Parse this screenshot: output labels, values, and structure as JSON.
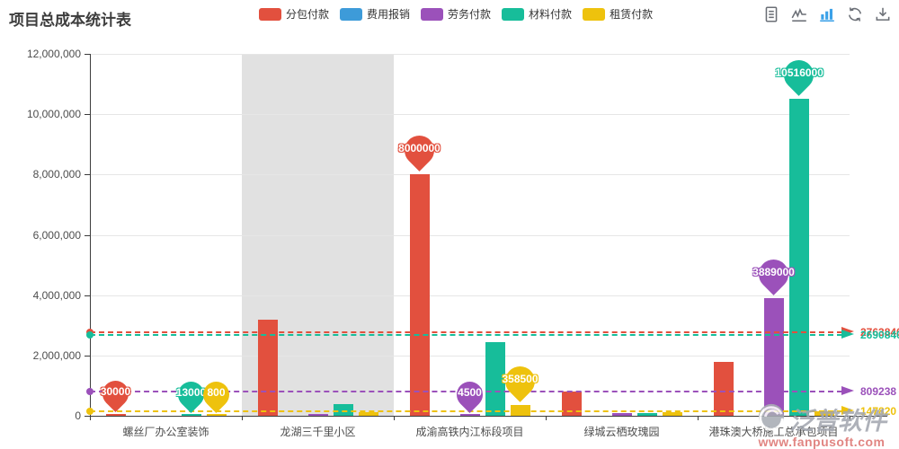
{
  "header": {
    "title": "项目总成本统计表"
  },
  "legend": [
    {
      "key": "subcontract-payment",
      "label": "分包付款",
      "color": "#e2503e"
    },
    {
      "key": "expense-reimbursement",
      "label": "费用报销",
      "color": "#3d9bd9"
    },
    {
      "key": "labor-payment",
      "label": "劳务付款",
      "color": "#9b51ba"
    },
    {
      "key": "material-payment",
      "label": "材料付款",
      "color": "#17bd9a"
    },
    {
      "key": "rental-payment",
      "label": "租赁付款",
      "color": "#eec20d"
    }
  ],
  "toolbar": {
    "icons": [
      {
        "name": "data-view-icon",
        "active": false
      },
      {
        "name": "line-chart-icon",
        "active": false
      },
      {
        "name": "bar-chart-icon",
        "active": true
      },
      {
        "name": "restore-icon",
        "active": false
      },
      {
        "name": "download-icon",
        "active": false
      }
    ],
    "accent_color": "#3ba1e8",
    "icon_color": "#6b6f76"
  },
  "chart_data": {
    "type": "bar",
    "title": "项目总成本统计表",
    "categories": [
      "螺丝厂办公室装饰",
      "龙湖三千里小区",
      "成渝高铁内江标段项目",
      "绿城云栖玫瑰园",
      "港珠澳大桥施工总承包项目"
    ],
    "series": [
      {
        "key": "subcontract-payment",
        "name": "分包付款",
        "color": "#e2503e",
        "values": [
          30000,
          3200000,
          8000000,
          800000,
          1789200
        ]
      },
      {
        "key": "expense-reimbursement",
        "name": "费用报销",
        "color": "#3d9bd9",
        "values": [
          0,
          0,
          0,
          0,
          0
        ]
      },
      {
        "key": "labor-payment",
        "name": "劳务付款",
        "color": "#9b51ba",
        "values": [
          0,
          60000,
          4500,
          92690,
          3889000
        ]
      },
      {
        "key": "material-payment",
        "name": "材料付款",
        "color": "#17bd9a",
        "values": [
          13000,
          390000,
          2450000,
          85200,
          10516000
        ]
      },
      {
        "key": "rental-payment",
        "name": "租赁付款",
        "color": "#eec20d",
        "values": [
          800,
          120000,
          358500,
          120000,
          139800
        ]
      }
    ],
    "ylim": [
      0,
      12000000
    ],
    "y_ticks": [
      "12,000,000",
      "10,000,000",
      "8,000,000",
      "6,000,000",
      "4,000,000",
      "2,000,000",
      "0"
    ],
    "grid": true,
    "legend_position": "top",
    "highlighted_category_index": 1,
    "markpoints": [
      {
        "series": "分包付款",
        "category_index": 0,
        "value": 30000,
        "label": "30000",
        "size": "small"
      },
      {
        "series": "材料付款",
        "category_index": 0,
        "value": 13000,
        "label": "13000",
        "size": "small"
      },
      {
        "series": "租赁付款",
        "category_index": 0,
        "value": 800,
        "label": "800",
        "size": "small"
      },
      {
        "series": "分包付款",
        "category_index": 2,
        "value": 8000000,
        "label": "8000000",
        "size": "large"
      },
      {
        "series": "劳务付款",
        "category_index": 2,
        "value": 4500,
        "label": "4500",
        "size": "small"
      },
      {
        "series": "租赁付款",
        "category_index": 2,
        "value": 358500,
        "label": "358500",
        "size": "large"
      },
      {
        "series": "劳务付款",
        "category_index": 4,
        "value": 3889000,
        "label": "3889000",
        "size": "large"
      },
      {
        "series": "材料付款",
        "category_index": 4,
        "value": 10516000,
        "label": "10516000",
        "size": "large"
      }
    ],
    "marklines": [
      {
        "series": "分包付款",
        "value": 2763840,
        "label": "2763840"
      },
      {
        "series": "材料付款",
        "value": 2690840,
        "label": "2690840"
      },
      {
        "series": "劳务付款",
        "value": 809238,
        "label": "809238"
      },
      {
        "series": "租赁付款",
        "value": 147820,
        "label": "147820"
      }
    ]
  },
  "watermark": {
    "brand": "泛普软件",
    "url": "www.fanpusoft.com"
  }
}
